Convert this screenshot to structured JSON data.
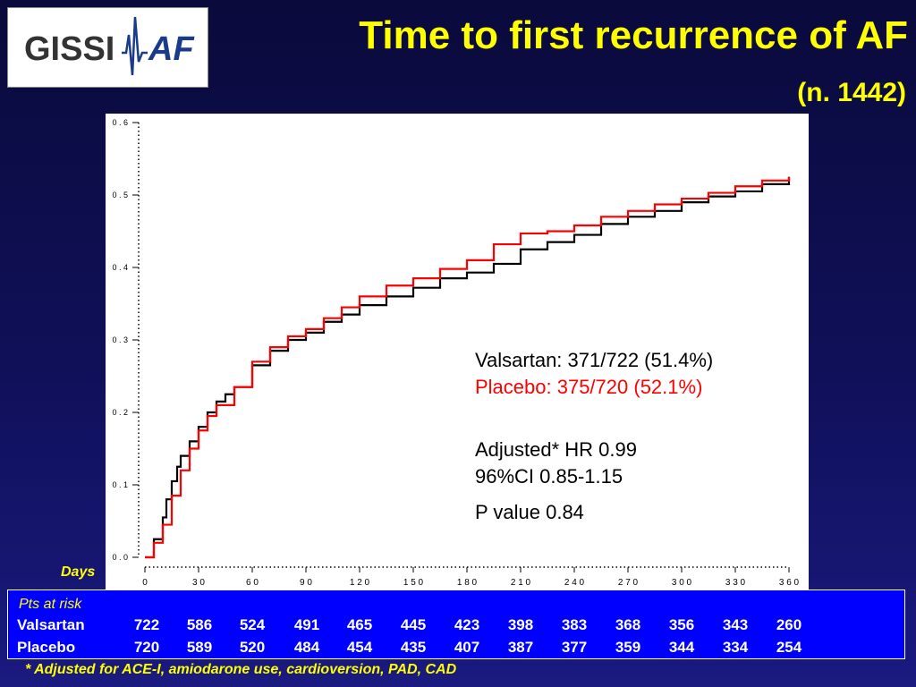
{
  "logo": {
    "left_text": "GISSI",
    "right_text": "AF"
  },
  "title": "Time to first recurrence of AF",
  "subtitle": "(n. 1442)",
  "chart_data": {
    "type": "line",
    "x_unit": "days",
    "xlim": [
      0,
      360
    ],
    "ylim": [
      0,
      0.6
    ],
    "x_ticks": [
      0,
      30,
      60,
      90,
      120,
      150,
      180,
      210,
      240,
      270,
      300,
      330,
      360
    ],
    "x_tick_labels": [
      "0",
      "3 0",
      "6 0",
      "9 0",
      "1 2 0",
      "1 5 0",
      "1 8 0",
      "2 1 0",
      "2 4 0",
      "2 7 0",
      "3 0 0",
      "3 3 0",
      "3 6 0"
    ],
    "y_ticks": [
      0,
      0.1,
      0.2,
      0.3,
      0.4,
      0.5,
      0.6
    ],
    "y_tick_labels": [
      "0 . 0",
      "0 . 1",
      "0 . 2",
      "0 . 3",
      "0 . 4",
      "0 . 5",
      "0 . 6"
    ],
    "xlabel": "Days",
    "grid": false,
    "series": [
      {
        "name": "Valsartan",
        "color": "#000000",
        "x": [
          0,
          5,
          10,
          12,
          15,
          18,
          20,
          25,
          30,
          35,
          40,
          45,
          50,
          60,
          70,
          80,
          90,
          100,
          110,
          120,
          135,
          150,
          165,
          180,
          195,
          210,
          225,
          240,
          255,
          270,
          285,
          300,
          315,
          330,
          345,
          360
        ],
        "y": [
          0,
          0.025,
          0.055,
          0.08,
          0.105,
          0.125,
          0.14,
          0.16,
          0.18,
          0.2,
          0.215,
          0.225,
          0.235,
          0.265,
          0.285,
          0.3,
          0.31,
          0.325,
          0.335,
          0.348,
          0.36,
          0.372,
          0.385,
          0.393,
          0.405,
          0.425,
          0.435,
          0.445,
          0.46,
          0.47,
          0.478,
          0.49,
          0.498,
          0.505,
          0.515,
          0.525
        ]
      },
      {
        "name": "Placebo",
        "color": "#ff0000",
        "x": [
          0,
          5,
          10,
          15,
          20,
          25,
          30,
          35,
          40,
          50,
          60,
          70,
          80,
          90,
          100,
          110,
          120,
          135,
          150,
          165,
          180,
          195,
          210,
          225,
          240,
          255,
          270,
          285,
          300,
          315,
          330,
          345,
          360
        ],
        "y": [
          0,
          0.02,
          0.045,
          0.085,
          0.12,
          0.15,
          0.175,
          0.195,
          0.21,
          0.235,
          0.27,
          0.29,
          0.305,
          0.315,
          0.33,
          0.345,
          0.36,
          0.375,
          0.385,
          0.398,
          0.41,
          0.432,
          0.447,
          0.45,
          0.458,
          0.47,
          0.478,
          0.487,
          0.495,
          0.503,
          0.512,
          0.52,
          0.525
        ]
      }
    ]
  },
  "annotations": {
    "valsartan": "Valsartan: 371/722 (51.4%)",
    "placebo": "Placebo: 375/720 (52.1%)",
    "hr": "Adjusted* HR 0.99",
    "ci": "96%CI 0.85-1.15",
    "p": "P value 0.84"
  },
  "risk_table": {
    "title": "Pts at risk",
    "rows": [
      {
        "name": "Valsartan",
        "values": [
          "722",
          "586",
          "524",
          "491",
          "465",
          "445",
          "423",
          "398",
          "383",
          "368",
          "356",
          "343",
          "260"
        ]
      },
      {
        "name": "Placebo",
        "values": [
          "720",
          "589",
          "520",
          "484",
          "454",
          "435",
          "407",
          "387",
          "377",
          "359",
          "344",
          "334",
          "254"
        ]
      }
    ]
  },
  "footnote": "* Adjusted for ACE-I, amiodarone use, cardioversion, PAD, CAD"
}
